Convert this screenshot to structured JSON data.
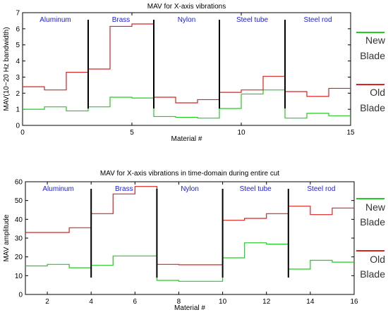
{
  "chart_data": [
    {
      "type": "line",
      "title": "MAV for X-axis vibrations",
      "xlabel": "Material #",
      "ylabel": "MAV(10~20 Hz bandwidth)",
      "xlim": [
        0,
        15
      ],
      "ylim": [
        0,
        7
      ],
      "xticks": [
        0,
        5,
        10,
        15
      ],
      "yticks": [
        0,
        1,
        2,
        3,
        4,
        5,
        6,
        7
      ],
      "tick_labels_x": [
        "0",
        "5",
        "10",
        "15"
      ],
      "tick_labels_y": [
        "0",
        "1",
        "2",
        "3",
        "4",
        "5",
        "6",
        "7"
      ],
      "dividers": [
        3,
        6,
        9,
        12
      ],
      "regions": [
        {
          "label": "Aluminum",
          "x": 1.5
        },
        {
          "label": "Brass",
          "x": 4.5
        },
        {
          "label": "Nylon",
          "x": 7.5
        },
        {
          "label": "Steel tube",
          "x": 10.5
        },
        {
          "label": "Steel rod",
          "x": 13.5
        }
      ],
      "step_edges": [
        0,
        1,
        2,
        3,
        4,
        5,
        6,
        7,
        8,
        9,
        10,
        11,
        12,
        13,
        14,
        15
      ],
      "series": [
        {
          "name": "New Blade",
          "color": "#22cc22",
          "values": [
            1.0,
            1.15,
            0.9,
            1.15,
            1.75,
            1.7,
            0.55,
            0.5,
            0.45,
            1.05,
            1.95,
            2.2,
            0.45,
            0.75,
            0.6
          ]
        },
        {
          "name": "Old Blade",
          "color": "#dd2222",
          "values": [
            2.4,
            2.2,
            3.3,
            3.5,
            6.15,
            6.3,
            1.75,
            1.4,
            1.6,
            2.05,
            2.2,
            3.05,
            2.1,
            1.8,
            2.3
          ]
        }
      ]
    },
    {
      "type": "line",
      "title": "MAV for X-axis vibrations in time-domain during entire cut",
      "xlabel": "Material #",
      "ylabel": "MAV amplitude",
      "xlim": [
        1,
        16
      ],
      "ylim": [
        0,
        60
      ],
      "xticks": [
        2,
        4,
        6,
        8,
        10,
        12,
        14,
        16
      ],
      "yticks": [
        0,
        10,
        20,
        30,
        40,
        50,
        60
      ],
      "tick_labels_x": [
        "2",
        "4",
        "6",
        "8",
        "10",
        "12",
        "14",
        "16"
      ],
      "tick_labels_y": [
        "0",
        "10",
        "20",
        "30",
        "40",
        "50",
        "60"
      ],
      "dividers": [
        4,
        7,
        10,
        13
      ],
      "regions": [
        {
          "label": "Aluminum",
          "x": 2.5
        },
        {
          "label": "Brass",
          "x": 5.5
        },
        {
          "label": "Nylon",
          "x": 8.5
        },
        {
          "label": "Steel tube",
          "x": 11.5
        },
        {
          "label": "Steel rod",
          "x": 14.5
        }
      ],
      "step_edges": [
        1,
        2,
        3,
        4,
        5,
        6,
        7,
        8,
        9,
        10,
        11,
        12,
        13,
        14,
        15,
        16
      ],
      "series": [
        {
          "name": "New Blade",
          "color": "#22cc22",
          "values": [
            15.2,
            16.0,
            14.2,
            15.5,
            20.5,
            20.5,
            7.5,
            7.0,
            7.0,
            19.5,
            27.5,
            26.8,
            13.5,
            18.2,
            17.2
          ]
        },
        {
          "name": "Old Blade",
          "color": "#dd2222",
          "values": [
            33.0,
            33.0,
            35.5,
            43.0,
            53.5,
            57.5,
            16.0,
            15.8,
            15.8,
            39.5,
            40.5,
            43.0,
            47.0,
            42.5,
            46.0
          ]
        }
      ]
    }
  ],
  "legends": [
    {
      "items": [
        {
          "line1": "New",
          "line2": "Blade",
          "color": "#22cc22"
        },
        {
          "line1": "Old",
          "line2": "Blade",
          "color": "#dd2222"
        }
      ]
    },
    {
      "items": [
        {
          "line1": "New",
          "line2": "Blade",
          "color": "#22cc22"
        },
        {
          "line1": "Old",
          "line2": "Blade",
          "color": "#dd2222"
        }
      ]
    }
  ],
  "colors": {
    "divider": "#000000",
    "region_label": "#1a1aee",
    "axis": "#000000",
    "text": "#000000"
  }
}
